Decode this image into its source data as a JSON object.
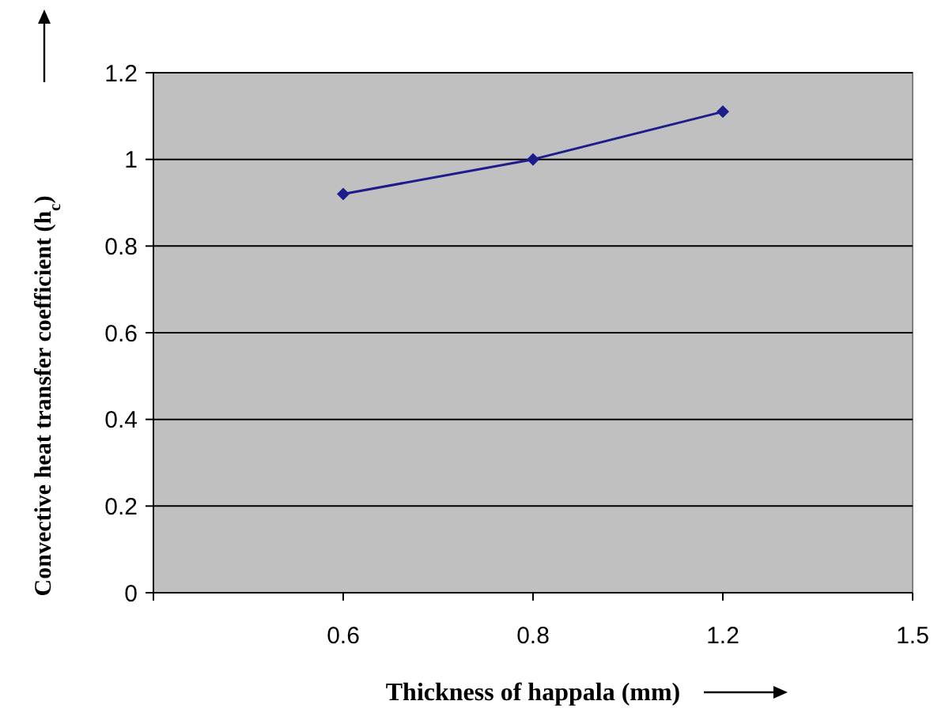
{
  "chart_data": {
    "type": "line",
    "xlabel": "Thickness of happala (mm)",
    "ylabel": "Convective heat transfer coefficient (h$_{c}$)",
    "categories": [
      null,
      "0.6",
      "0.8",
      "1.2",
      "1.5"
    ],
    "series": [
      {
        "color": "#1c1c8c",
        "values": [
          null,
          0.92,
          1.0,
          1.11,
          null
        ]
      }
    ],
    "ylim": [
      0,
      1.2
    ],
    "yticks": [
      0,
      0.2,
      0.4,
      0.6,
      0.8,
      1,
      1.2
    ],
    "grid": "y",
    "marker": "diamond",
    "line_style": "solid"
  }
}
